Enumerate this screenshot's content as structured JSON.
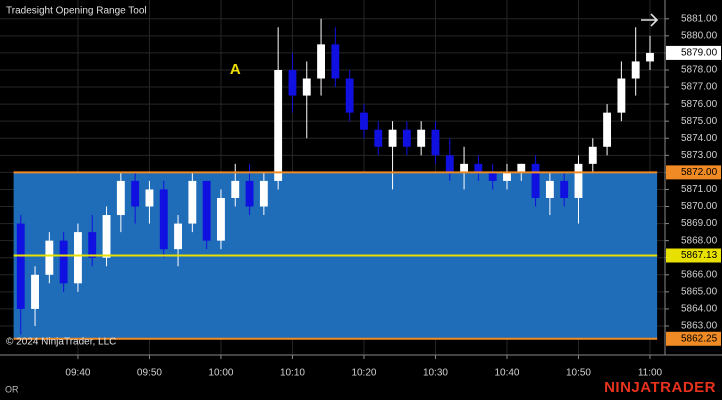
{
  "chart_data": {
    "type": "candlestick",
    "title": "Tradesight Opening Range Tool",
    "copyright": "© 2024 NinjaTrader, LLC",
    "footer_label": "OR",
    "brand": "NINJATRADER",
    "x": [
      572,
      574,
      576,
      578,
      580,
      582,
      584,
      586,
      588,
      590,
      592,
      594,
      596,
      598,
      600,
      602,
      604,
      606,
      608,
      610,
      612,
      614,
      616,
      618,
      620,
      622,
      624,
      626,
      628,
      630,
      632,
      634,
      636,
      638,
      640,
      642,
      644,
      646,
      648,
      650,
      652,
      654,
      656,
      658,
      660
    ],
    "open": [
      5869.0,
      5864.0,
      5866.0,
      5868.0,
      5865.5,
      5868.5,
      5867.0,
      5869.5,
      5871.5,
      5870.0,
      5871.0,
      5867.5,
      5869.0,
      5871.5,
      5868.0,
      5870.5,
      5871.5,
      5870.0,
      5871.5,
      5878.0,
      5876.5,
      5877.5,
      5879.5,
      5877.5,
      5875.5,
      5874.5,
      5873.5,
      5874.5,
      5873.5,
      5874.5,
      5873.0,
      5872.0,
      5872.5,
      5872.0,
      5871.5,
      5872.0,
      5872.5,
      5870.5,
      5871.5,
      5870.5,
      5872.5,
      5873.5,
      5875.5,
      5877.5,
      5878.5
    ],
    "high": [
      5869.5,
      5866.5,
      5868.5,
      5868.5,
      5869.0,
      5869.5,
      5870.0,
      5872.0,
      5872.0,
      5871.5,
      5871.5,
      5869.5,
      5872.0,
      5871.5,
      5871.0,
      5872.5,
      5872.5,
      5872.0,
      5880.5,
      5879.0,
      5878.5,
      5881.0,
      5880.5,
      5878.0,
      5876.0,
      5875.0,
      5875.0,
      5875.0,
      5875.0,
      5875.0,
      5874.0,
      5873.5,
      5873.0,
      5872.5,
      5872.5,
      5872.5,
      5873.0,
      5872.0,
      5872.0,
      5873.0,
      5874.0,
      5876.0,
      5878.5,
      5880.5,
      5880.0
    ],
    "low": [
      5862.5,
      5863.0,
      5865.5,
      5865.0,
      5865.0,
      5866.5,
      5866.5,
      5868.5,
      5869.0,
      5869.0,
      5867.0,
      5866.5,
      5868.5,
      5867.5,
      5867.5,
      5870.0,
      5869.5,
      5869.5,
      5871.0,
      5875.5,
      5874.0,
      5876.5,
      5877.0,
      5875.0,
      5874.0,
      5873.0,
      5871.0,
      5873.0,
      5873.0,
      5872.5,
      5871.5,
      5871.0,
      5871.5,
      5871.0,
      5871.0,
      5871.5,
      5870.0,
      5869.5,
      5870.0,
      5869.0,
      5872.0,
      5873.0,
      5875.0,
      5876.5,
      5878.0
    ],
    "close": [
      5864.0,
      5866.0,
      5868.0,
      5865.5,
      5868.5,
      5867.0,
      5869.5,
      5871.5,
      5870.0,
      5871.0,
      5867.5,
      5869.0,
      5871.5,
      5868.0,
      5870.5,
      5871.5,
      5870.0,
      5871.5,
      5878.0,
      5876.5,
      5877.5,
      5879.5,
      5877.5,
      5875.5,
      5874.5,
      5873.5,
      5874.5,
      5873.5,
      5874.5,
      5873.0,
      5872.0,
      5872.5,
      5872.0,
      5871.5,
      5872.0,
      5872.5,
      5870.5,
      5871.5,
      5870.5,
      5872.5,
      5873.5,
      5875.5,
      5877.5,
      5878.5,
      5879.0
    ],
    "up_color": "#ffffff",
    "down_color": "#1010e0",
    "xlim": [
      569.1,
      662.1
    ],
    "xticks": [
      {
        "value": 580,
        "label": "09:40"
      },
      {
        "value": 590,
        "label": "09:50"
      },
      {
        "value": 600,
        "label": "10:00"
      },
      {
        "value": 610,
        "label": "10:10"
      },
      {
        "value": 620,
        "label": "10:20"
      },
      {
        "value": 630,
        "label": "10:30"
      },
      {
        "value": 640,
        "label": "10:40"
      },
      {
        "value": 650,
        "label": "10:50"
      },
      {
        "value": 660,
        "label": "11:00"
      }
    ],
    "ylim": [
      5861.3,
      5882.1
    ],
    "yticks": [
      {
        "value": 5863,
        "label": "5863.00"
      },
      {
        "value": 5864,
        "label": "5864.00"
      },
      {
        "value": 5865,
        "label": "5865.00"
      },
      {
        "value": 5866,
        "label": "5866.00"
      },
      {
        "value": 5867,
        "label": "5867.00"
      },
      {
        "value": 5868,
        "label": "5868.00"
      },
      {
        "value": 5869,
        "label": "5869.00"
      },
      {
        "value": 5870,
        "label": "5870.00"
      },
      {
        "value": 5871,
        "label": "5871.00"
      },
      {
        "value": 5872,
        "label": "5872.00"
      },
      {
        "value": 5873,
        "label": "5873.00"
      },
      {
        "value": 5874,
        "label": "5874.00"
      },
      {
        "value": 5875,
        "label": "5875.00"
      },
      {
        "value": 5876,
        "label": "5876.00"
      },
      {
        "value": 5877,
        "label": "5877.00"
      },
      {
        "value": 5878,
        "label": "5878.00"
      },
      {
        "value": 5879,
        "label": "5879.00"
      },
      {
        "value": 5880,
        "label": "5880.00"
      },
      {
        "value": 5881,
        "label": "5881.00"
      }
    ],
    "grid": true,
    "opening_range": {
      "start": 571,
      "end": 661,
      "high": {
        "value": 5872,
        "label": "5872.00"
      },
      "mid": {
        "value": 5867.13,
        "label": "5867.13"
      },
      "low": {
        "value": 5862.25,
        "label": "5862.25"
      },
      "fill": "#1f6cb8",
      "edge_color": "#f08a24",
      "mid_color": "#e8e000"
    },
    "last_price": {
      "value": 5879,
      "label": "5879.00"
    },
    "annotations": [
      {
        "text": "A",
        "x": 602,
        "y": 5878,
        "color": "#f0e000"
      }
    ]
  }
}
